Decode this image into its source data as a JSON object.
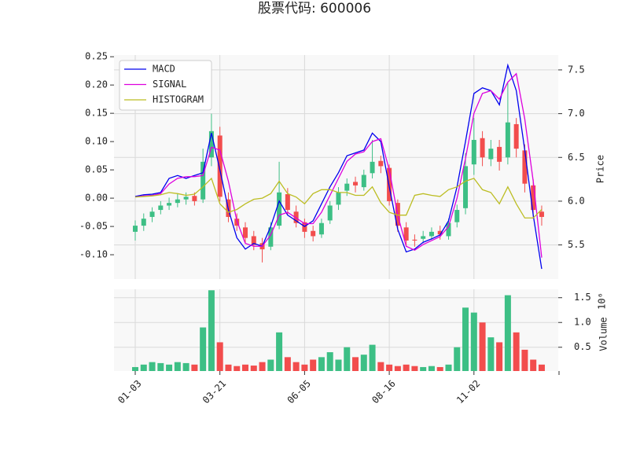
{
  "chart_data": {
    "type": "candlestick",
    "title": "股票代码: 600006",
    "categories": [
      "01-03",
      null,
      null,
      null,
      null,
      null,
      null,
      null,
      null,
      null,
      "03-21",
      null,
      null,
      null,
      null,
      null,
      null,
      null,
      null,
      null,
      "06-05",
      null,
      null,
      null,
      null,
      null,
      null,
      null,
      null,
      null,
      "08-16",
      null,
      null,
      null,
      null,
      null,
      null,
      null,
      null,
      null,
      "11-02",
      null,
      null,
      null,
      null,
      null,
      null,
      null,
      null
    ],
    "open": [
      5.65,
      5.72,
      5.82,
      5.9,
      5.95,
      5.98,
      6.02,
      6.06,
      6.02,
      6.5,
      6.75,
      6.02,
      5.8,
      5.7,
      5.6,
      5.52,
      5.48,
      5.72,
      6.08,
      5.88,
      5.76,
      5.66,
      5.62,
      5.78,
      5.96,
      6.12,
      6.22,
      6.16,
      6.32,
      6.46,
      6.38,
      5.98,
      5.7,
      5.56,
      5.57,
      5.6,
      5.66,
      5.6,
      5.76,
      5.92,
      6.42,
      6.72,
      6.48,
      6.62,
      6.5,
      6.88,
      6.58,
      6.18,
      5.88
    ],
    "high": [
      5.78,
      5.86,
      5.93,
      6.0,
      6.04,
      6.08,
      6.1,
      6.1,
      6.6,
      7.0,
      6.85,
      6.1,
      5.86,
      5.76,
      5.66,
      5.58,
      5.76,
      6.45,
      6.15,
      5.95,
      5.8,
      5.72,
      5.8,
      6.0,
      6.16,
      6.26,
      6.28,
      6.36,
      6.7,
      6.52,
      6.42,
      6.02,
      5.76,
      5.62,
      5.66,
      5.7,
      5.72,
      5.8,
      5.96,
      6.55,
      6.95,
      6.8,
      6.7,
      6.7,
      7.35,
      6.95,
      6.65,
      6.25,
      5.95
    ],
    "low": [
      5.55,
      5.66,
      5.76,
      5.85,
      5.9,
      5.93,
      5.96,
      5.95,
      5.98,
      6.4,
      6.0,
      5.76,
      5.66,
      5.52,
      5.44,
      5.3,
      5.44,
      5.68,
      5.85,
      5.7,
      5.58,
      5.54,
      5.58,
      5.74,
      5.9,
      6.06,
      6.1,
      6.12,
      6.26,
      6.32,
      5.95,
      5.65,
      5.48,
      5.48,
      5.52,
      5.56,
      5.56,
      5.56,
      5.7,
      5.85,
      6.3,
      6.4,
      6.4,
      6.35,
      6.42,
      6.5,
      6.1,
      5.8,
      5.72
    ],
    "close": [
      5.72,
      5.8,
      5.88,
      5.95,
      5.98,
      6.02,
      6.05,
      6.0,
      6.45,
      6.8,
      6.05,
      5.82,
      5.72,
      5.58,
      5.5,
      5.45,
      5.7,
      6.1,
      5.9,
      5.75,
      5.65,
      5.6,
      5.75,
      5.95,
      6.1,
      6.2,
      6.18,
      6.3,
      6.45,
      6.4,
      6.0,
      5.72,
      5.55,
      5.55,
      5.6,
      5.65,
      5.62,
      5.75,
      5.9,
      6.4,
      6.7,
      6.5,
      6.6,
      6.45,
      6.9,
      6.6,
      6.2,
      5.9,
      5.82
    ],
    "up_color": "#3dbf85",
    "down_color": "#f24d4d",
    "ylim": [
      -0.143,
      0.253
    ],
    "yticks": [
      {
        "value": 0.25,
        "label": "0.25"
      },
      {
        "value": 0.2,
        "label": "0.20"
      },
      {
        "value": 0.15,
        "label": "0.15"
      },
      {
        "value": 0.1,
        "label": "0.10"
      },
      {
        "value": 0.05,
        "label": "0.05"
      },
      {
        "value": 0,
        "label": "0.00"
      },
      {
        "value": -0.05,
        "label": "-0.05"
      },
      {
        "value": -0.1,
        "label": "-0.10"
      }
    ],
    "y2label": "Price",
    "y2lim": [
      5.11,
      7.67
    ],
    "y2ticks": [
      5.5,
      {
        "value": 6,
        "label": "6.0"
      },
      6.5,
      {
        "value": 7,
        "label": "7.0"
      },
      7.5
    ],
    "grid": true,
    "legend": "upper left",
    "series": [
      {
        "name": "MACD",
        "color": "#0000ee",
        "values": [
          0.003,
          0.006,
          0.007,
          0.01,
          0.035,
          0.04,
          0.035,
          0.04,
          0.045,
          0.115,
          0.05,
          -0.02,
          -0.07,
          -0.09,
          -0.08,
          -0.085,
          -0.05,
          -0.005,
          -0.03,
          -0.04,
          -0.05,
          -0.04,
          -0.01,
          0.02,
          0.045,
          0.075,
          0.08,
          0.085,
          0.115,
          0.1,
          0.02,
          -0.055,
          -0.095,
          -0.09,
          -0.078,
          -0.072,
          -0.065,
          -0.04,
          0.02,
          0.1,
          0.185,
          0.195,
          0.19,
          0.165,
          0.235,
          0.19,
          0.085,
          -0.03,
          -0.125
        ]
      },
      {
        "name": "SIGNAL",
        "color": "#dd00dd",
        "values": [
          0.002,
          0.004,
          0.005,
          0.008,
          0.025,
          0.035,
          0.038,
          0.038,
          0.04,
          0.09,
          0.085,
          0.03,
          -0.04,
          -0.08,
          -0.085,
          -0.085,
          -0.065,
          -0.03,
          -0.025,
          -0.035,
          -0.045,
          -0.045,
          -0.025,
          0.005,
          0.035,
          0.065,
          0.078,
          0.082,
          0.1,
          0.105,
          0.05,
          -0.03,
          -0.085,
          -0.092,
          -0.082,
          -0.075,
          -0.068,
          -0.05,
          0.0,
          0.07,
          0.15,
          0.185,
          0.19,
          0.175,
          0.205,
          0.22,
          0.14,
          0.03,
          -0.105
        ]
      },
      {
        "name": "HISTOGRAM",
        "color": "#bcbd22",
        "values": [
          0.002,
          0.003,
          0.004,
          0.006,
          0.01,
          0.008,
          0.005,
          0.007,
          0.02,
          0.035,
          -0.01,
          -0.025,
          -0.02,
          -0.01,
          -0.002,
          0.0,
          0.008,
          0.03,
          0.008,
          0.002,
          -0.01,
          0.008,
          0.015,
          0.015,
          0.01,
          0.01,
          0.005,
          0.005,
          0.02,
          -0.008,
          -0.025,
          -0.03,
          -0.03,
          0.005,
          0.008,
          0.005,
          0.003,
          0.015,
          0.02,
          0.03,
          0.035,
          0.015,
          0.01,
          -0.01,
          0.02,
          -0.01,
          -0.035,
          -0.035,
          -0.02
        ]
      }
    ],
    "volume": {
      "ylabel": "Volume",
      "scale_label": "10⁶",
      "values": [
        0.1,
        0.15,
        0.2,
        0.18,
        0.15,
        0.2,
        0.18,
        0.15,
        0.9,
        1.65,
        0.6,
        0.15,
        0.12,
        0.15,
        0.13,
        0.2,
        0.25,
        0.8,
        0.3,
        0.2,
        0.15,
        0.25,
        0.3,
        0.4,
        0.25,
        0.5,
        0.3,
        0.35,
        0.55,
        0.2,
        0.15,
        0.12,
        0.15,
        0.12,
        0.1,
        0.12,
        0.1,
        0.15,
        0.5,
        1.3,
        1.2,
        1.0,
        0.7,
        0.6,
        1.55,
        0.8,
        0.45,
        0.25,
        0.15
      ],
      "ylim": [
        0.02,
        1.67
      ],
      "yticks": [
        0.5,
        {
          "value": 1,
          "label": "1.0"
        },
        1.5
      ]
    }
  }
}
